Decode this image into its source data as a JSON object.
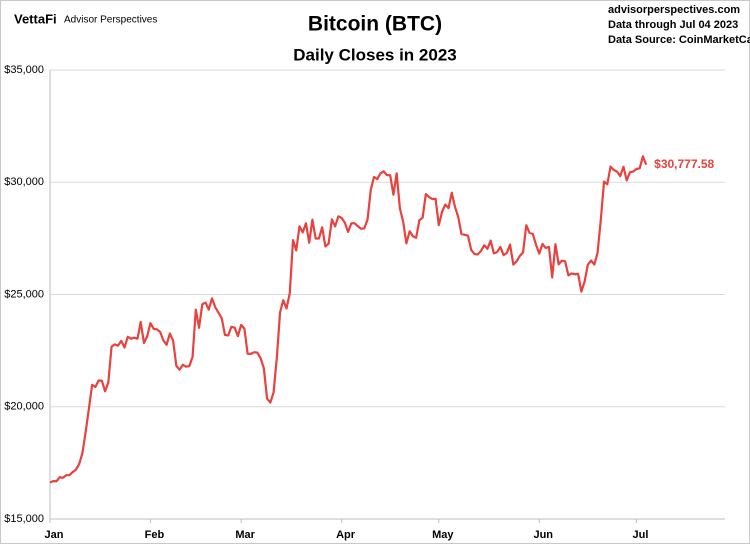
{
  "chart_data": {
    "type": "line",
    "title": "Bitcoin (BTC)",
    "subtitle": "Daily Closes in 2023",
    "brand": "VettaFi",
    "brand_tagline": "Advisor Perspectives",
    "notes": [
      "advisorperspectives.com",
      "Data through Jul 04 2023",
      "Data Source: CoinMarketCap"
    ],
    "categories": [
      "Jan",
      null,
      null,
      null,
      null,
      null,
      null,
      null,
      null,
      null,
      null,
      null,
      null,
      null,
      null,
      null,
      null,
      null,
      null,
      null,
      null,
      null,
      null,
      null,
      null,
      null,
      null,
      null,
      null,
      null,
      null,
      "Feb",
      null,
      null,
      null,
      null,
      null,
      null,
      null,
      null,
      null,
      null,
      null,
      null,
      null,
      null,
      null,
      null,
      null,
      null,
      null,
      null,
      null,
      null,
      null,
      null,
      null,
      null,
      null,
      "Mar",
      null,
      null,
      null,
      null,
      null,
      null,
      null,
      null,
      null,
      null,
      null,
      null,
      null,
      null,
      null,
      null,
      null,
      null,
      null,
      null,
      null,
      null,
      null,
      null,
      null,
      null,
      null,
      null,
      null,
      null,
      "Apr",
      null,
      null,
      null,
      null,
      null,
      null,
      null,
      null,
      null,
      null,
      null,
      null,
      null,
      null,
      null,
      null,
      null,
      null,
      null,
      null,
      null,
      null,
      null,
      null,
      null,
      null,
      null,
      null,
      null,
      "May",
      null,
      null,
      null,
      null,
      null,
      null,
      null,
      null,
      null,
      null,
      null,
      null,
      null,
      null,
      null,
      null,
      null,
      null,
      null,
      null,
      null,
      null,
      null,
      null,
      null,
      null,
      null,
      null,
      null,
      null,
      "Jun",
      null,
      null,
      null,
      null,
      null,
      null,
      null,
      null,
      null,
      null,
      null,
      null,
      null,
      null,
      null,
      null,
      null,
      null,
      null,
      null,
      null,
      null,
      null,
      null,
      null,
      null,
      null,
      null,
      null,
      "Jul",
      null,
      null,
      null
    ],
    "values": [
      16625,
      16688,
      16680,
      16863,
      16837,
      16951,
      16955,
      17091,
      17196,
      17446,
      17934,
      18869,
      19909,
      20976,
      20880,
      21169,
      21161,
      20689,
      21086,
      22676,
      22777,
      22720,
      22934,
      22636,
      23117,
      23032,
      23078,
      23031,
      23774,
      22840,
      23139,
      23723,
      23471,
      23449,
      23331,
      22955,
      22760,
      23264,
      22939,
      21819,
      21651,
      21870,
      21788,
      21808,
      22220,
      24327,
      23517,
      24565,
      24641,
      24327,
      24829,
      24436,
      24188,
      23947,
      23198,
      23175,
      23562,
      23522,
      23147,
      23647,
      23475,
      22362,
      22354,
      22430,
      22410,
      22163,
      21718,
      20363,
      20187,
      20632,
      22163,
      24197,
      24746,
      24375,
      25052,
      27423,
      26966,
      28038,
      27767,
      28175,
      27307,
      28333,
      27493,
      27494,
      27994,
      27139,
      27268,
      28348,
      28033,
      28478,
      28411,
      28199,
      27790,
      28168,
      28177,
      28044,
      27925,
      27947,
      28333,
      29653,
      30235,
      30139,
      30399,
      30485,
      30318,
      30315,
      29445,
      30397,
      28823,
      28246,
      27276,
      27817,
      27591,
      27525,
      28307,
      28422,
      29474,
      29340,
      29248,
      29268,
      28091,
      28680,
      29006,
      28847,
      29534,
      28904,
      28454,
      27695,
      27658,
      27621,
      26987,
      26805,
      26785,
      26931,
      27192,
      27036,
      27398,
      26833,
      26889,
      27118,
      26753,
      26851,
      27225,
      26334,
      26476,
      26719,
      26868,
      28086,
      27745,
      27702,
      27219,
      26819,
      27249,
      27075,
      27119,
      25760,
      27238,
      26346,
      26508,
      26480,
      25851,
      25940,
      25902,
      25920,
      25125,
      25575,
      26327,
      26510,
      26336,
      26851,
      28327,
      30027,
      29912,
      30695,
      30548,
      30481,
      30271,
      30688,
      30086,
      30446,
      30477,
      30590,
      30620,
      31156,
      30777.58
    ],
    "value_labels": [
      null,
      null,
      null,
      null,
      null,
      null,
      null,
      null,
      null,
      null,
      null,
      null,
      null,
      null,
      null,
      null,
      null,
      null,
      null,
      null,
      null,
      null,
      null,
      null,
      null,
      null,
      null,
      null,
      null,
      null,
      null,
      null,
      null,
      null,
      null,
      null,
      null,
      null,
      null,
      null,
      null,
      null,
      null,
      null,
      null,
      null,
      null,
      null,
      null,
      null,
      null,
      null,
      null,
      null,
      null,
      null,
      null,
      null,
      null,
      null,
      null,
      null,
      null,
      null,
      null,
      null,
      null,
      null,
      null,
      null,
      null,
      null,
      null,
      null,
      null,
      null,
      null,
      null,
      null,
      null,
      null,
      null,
      null,
      null,
      null,
      null,
      null,
      null,
      null,
      null,
      null,
      null,
      null,
      null,
      null,
      null,
      null,
      null,
      null,
      null,
      null,
      null,
      null,
      null,
      null,
      null,
      null,
      null,
      null,
      null,
      null,
      null,
      null,
      null,
      null,
      null,
      null,
      null,
      null,
      null,
      null,
      null,
      null,
      null,
      null,
      null,
      null,
      null,
      null,
      null,
      null,
      null,
      null,
      null,
      null,
      null,
      null,
      null,
      null,
      null,
      null,
      null,
      null,
      null,
      null,
      null,
      null,
      null,
      null,
      null,
      null,
      null,
      null,
      null,
      null,
      null,
      null,
      null,
      null,
      null,
      null,
      null,
      null,
      null,
      null,
      null,
      null,
      null,
      null,
      null,
      null,
      null,
      null,
      null,
      null,
      null,
      null,
      null,
      null,
      null,
      null,
      null,
      null,
      null,
      "$30,777.58"
    ],
    "color": "#e8413e",
    "ylim": [
      15000,
      35000
    ],
    "yticks": [
      {
        "value": 15000,
        "label": "$15,000"
      },
      {
        "value": 20000,
        "label": "$20,000"
      },
      {
        "value": 25000,
        "label": "$25,000"
      },
      {
        "value": 30000,
        "label": "$30,000"
      },
      {
        "value": 35000,
        "label": "$35,000"
      }
    ],
    "grid": true
  }
}
